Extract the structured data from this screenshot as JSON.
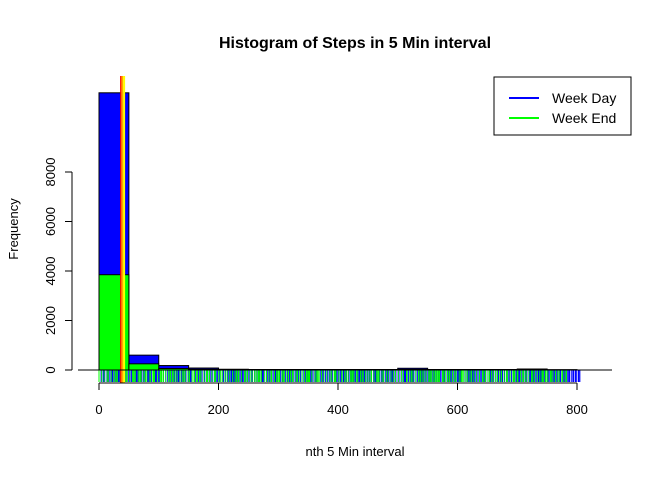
{
  "chart_data": {
    "type": "bar",
    "title": "Histogram of Steps in 5 Min interval",
    "xlabel": "nth 5 Min interval",
    "ylabel": "Frequency",
    "xlim": [
      0,
      850
    ],
    "ylim": [
      0,
      11000
    ],
    "x_ticks": [
      0,
      200,
      400,
      600,
      800
    ],
    "y_ticks": [
      0,
      2000,
      4000,
      6000,
      8000
    ],
    "bin_edges": [
      0,
      50,
      100,
      150,
      200,
      250,
      300,
      350,
      400,
      450,
      500,
      550,
      600,
      650,
      700,
      750,
      800
    ],
    "series": [
      {
        "name": "Week Day",
        "color": "#0000ff",
        "values": [
          11200,
          600,
          180,
          80,
          30,
          20,
          20,
          20,
          20,
          20,
          70,
          20,
          20,
          20,
          40,
          10
        ]
      },
      {
        "name": "Week End",
        "color": "#00ff00",
        "values": [
          3850,
          250,
          60,
          30,
          20,
          20,
          20,
          20,
          20,
          20,
          20,
          20,
          20,
          10,
          10,
          10
        ]
      }
    ],
    "vertical_lines": [
      {
        "x": 37,
        "color": "#ff0000"
      },
      {
        "x": 39,
        "color": "#ffa500"
      },
      {
        "x": 42,
        "color": "#ffff00"
      }
    ],
    "rug": {
      "weekday_range": [
        0,
        806
      ],
      "weekend_range": [
        0,
        785
      ],
      "weekday_color": "#0000ff",
      "weekend_color": "#00ff00"
    },
    "legend": {
      "position": "top-right",
      "entries": [
        {
          "label": "Week Day",
          "color": "#0000ff"
        },
        {
          "label": "Week End",
          "color": "#00ff00"
        }
      ]
    },
    "grid": false
  }
}
